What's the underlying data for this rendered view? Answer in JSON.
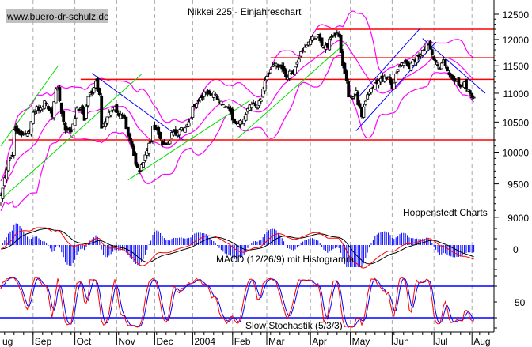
{
  "chart_data": {
    "type": "candlestick",
    "title": "Nikkei 225 - Einjahreschart",
    "watermark": "www.buero-dr-schulz.de",
    "source": "Hoppenstedt Charts",
    "y_scale": "log",
    "ylim": [
      9000,
      12500
    ],
    "y_ticks": [
      12500,
      12000,
      11500,
      11000,
      10500,
      10000,
      9500,
      9000
    ],
    "x_domain_days": [
      0,
      260
    ],
    "month_ticks": [
      {
        "label": "ug",
        "day": 0
      },
      {
        "label": "Sep",
        "day": 17
      },
      {
        "label": "Oct",
        "day": 39
      },
      {
        "label": "Nov",
        "day": 61
      },
      {
        "label": "Dec",
        "day": 81
      },
      {
        "label": "2004",
        "day": 101
      },
      {
        "label": "Feb",
        "day": 122
      },
      {
        "label": "Mar",
        "day": 140
      },
      {
        "label": "Apr",
        "day": 163
      },
      {
        "label": "May",
        "day": 184
      },
      {
        "label": "Jun",
        "day": 206
      },
      {
        "label": "Jul",
        "day": 228
      },
      {
        "label": "Aug",
        "day": 248
      }
    ],
    "closes": [
      [
        0,
        9350
      ],
      [
        2,
        9590
      ],
      [
        4,
        9900
      ],
      [
        6,
        9970
      ],
      [
        7,
        10360
      ],
      [
        9,
        10360
      ],
      [
        10,
        10320
      ],
      [
        12,
        10290
      ],
      [
        15,
        10320
      ],
      [
        17,
        10700
      ],
      [
        19,
        10760
      ],
      [
        21,
        10700
      ],
      [
        23,
        10860
      ],
      [
        25,
        10760
      ],
      [
        27,
        10630
      ],
      [
        29,
        11040
      ],
      [
        30,
        11110
      ],
      [
        32,
        10630
      ],
      [
        34,
        10360
      ],
      [
        37,
        10320
      ],
      [
        40,
        10700
      ],
      [
        42,
        10760
      ],
      [
        44,
        10560
      ],
      [
        46,
        10940
      ],
      [
        48,
        11040
      ],
      [
        50,
        11180
      ],
      [
        52,
        10960
      ],
      [
        53,
        10420
      ],
      [
        55,
        10490
      ],
      [
        58,
        10700
      ],
      [
        60,
        10760
      ],
      [
        62,
        10630
      ],
      [
        65,
        10560
      ],
      [
        67,
        10290
      ],
      [
        69,
        10100
      ],
      [
        71,
        9840
      ],
      [
        73,
        9720
      ],
      [
        75,
        9840
      ],
      [
        77,
        10040
      ],
      [
        79,
        10170
      ],
      [
        80,
        10430
      ],
      [
        82,
        10390
      ],
      [
        85,
        10100
      ],
      [
        87,
        10140
      ],
      [
        89,
        10170
      ],
      [
        90,
        10360
      ],
      [
        92,
        10290
      ],
      [
        94,
        10390
      ],
      [
        96,
        10360
      ],
      [
        98,
        10430
      ],
      [
        100,
        10560
      ],
      [
        101,
        10760
      ],
      [
        103,
        10830
      ],
      [
        105,
        10900
      ],
      [
        108,
        11040
      ],
      [
        110,
        10960
      ],
      [
        112,
        11040
      ],
      [
        114,
        10900
      ],
      [
        116,
        10830
      ],
      [
        118,
        10760
      ],
      [
        120,
        10700
      ],
      [
        122,
        10560
      ],
      [
        124,
        10430
      ],
      [
        126,
        10490
      ],
      [
        128,
        10560
      ],
      [
        130,
        10700
      ],
      [
        132,
        10830
      ],
      [
        135,
        10760
      ],
      [
        137,
        10900
      ],
      [
        138,
        11040
      ],
      [
        140,
        11330
      ],
      [
        141,
        11390
      ],
      [
        143,
        11520
      ],
      [
        145,
        11500
      ],
      [
        147,
        11470
      ],
      [
        149,
        11370
      ],
      [
        151,
        11290
      ],
      [
        152,
        11420
      ],
      [
        154,
        11330
      ],
      [
        156,
        11540
      ],
      [
        158,
        11770
      ],
      [
        160,
        11810
      ],
      [
        162,
        11970
      ],
      [
        165,
        12060
      ],
      [
        167,
        12070
      ],
      [
        168,
        11990
      ],
      [
        170,
        11840
      ],
      [
        172,
        11870
      ],
      [
        173,
        11990
      ],
      [
        175,
        12120
      ],
      [
        177,
        12120
      ],
      [
        178,
        12020
      ],
      [
        180,
        11540
      ],
      [
        182,
        11250
      ],
      [
        183,
        10960
      ],
      [
        185,
        10870
      ],
      [
        187,
        11040
      ],
      [
        188,
        10830
      ],
      [
        190,
        10630
      ],
      [
        192,
        10830
      ],
      [
        194,
        11040
      ],
      [
        196,
        11110
      ],
      [
        198,
        11180
      ],
      [
        200,
        11250
      ],
      [
        202,
        11280
      ],
      [
        204,
        11250
      ],
      [
        206,
        11110
      ],
      [
        208,
        11330
      ],
      [
        210,
        11540
      ],
      [
        212,
        11570
      ],
      [
        215,
        11470
      ],
      [
        217,
        11570
      ],
      [
        219,
        11660
      ],
      [
        221,
        11690
      ],
      [
        223,
        11840
      ],
      [
        225,
        11920
      ],
      [
        227,
        11660
      ],
      [
        229,
        11540
      ],
      [
        231,
        11470
      ],
      [
        233,
        11570
      ],
      [
        235,
        11390
      ],
      [
        238,
        11250
      ],
      [
        240,
        11250
      ],
      [
        242,
        11110
      ],
      [
        244,
        11180
      ],
      [
        246,
        11040
      ],
      [
        248,
        10960
      ],
      [
        249,
        10940
      ]
    ],
    "horizontal_lines": [
      {
        "price": 12200,
        "from_day": 166,
        "color": "#ff0000"
      },
      {
        "price": 11650,
        "from_day": 142,
        "color": "#ff0000"
      },
      {
        "price": 11250,
        "from_day": 42,
        "color": "#ff0000"
      },
      {
        "price": 10200,
        "from_day": 4,
        "color": "#ff0000"
      }
    ],
    "trend_lines": [
      {
        "from": [
          0,
          10100
        ],
        "to": [
          30,
          11490
        ],
        "color": "#00dd00"
      },
      {
        "from": [
          0,
          9260
        ],
        "to": [
          74,
          11340
        ],
        "color": "#00dd00"
      },
      {
        "from": [
          67,
          9560
        ],
        "to": [
          131,
          10870
        ],
        "color": "#00dd00"
      },
      {
        "from": [
          124,
          10210
        ],
        "to": [
          182,
          11950
        ],
        "color": "#00dd00"
      },
      {
        "from": [
          48,
          11360
        ],
        "to": [
          96,
          10200
        ],
        "color": "#0000ff"
      },
      {
        "from": [
          187,
          10350
        ],
        "to": [
          229,
          11950
        ],
        "color": "#0000ff"
      },
      {
        "from": [
          189,
          10960
        ],
        "to": [
          221,
          12230
        ],
        "color": "#0000ff"
      },
      {
        "from": [
          222,
          12020
        ],
        "to": [
          255,
          11000
        ],
        "color": "#0000ff"
      }
    ],
    "bollinger": {
      "period": 20,
      "stddev": 2,
      "color": "#ff00ff"
    },
    "macd": {
      "label": "MACD (12/26/9) mit Histogramm",
      "fast": 12,
      "slow": 26,
      "signal": 9,
      "zero_label": "0",
      "macd_color": "#ff0000",
      "signal_color": "#000000",
      "hist_color": "#0000ff"
    },
    "stochastic": {
      "label": "Slow Stochastik (5/3/3)",
      "k": 5,
      "slow": 3,
      "d": 3,
      "levels": [
        80,
        20
      ],
      "tick_label": "50",
      "k_color": "#ff0000",
      "d_color": "#0000ff",
      "level_color": "#0000ff"
    }
  }
}
